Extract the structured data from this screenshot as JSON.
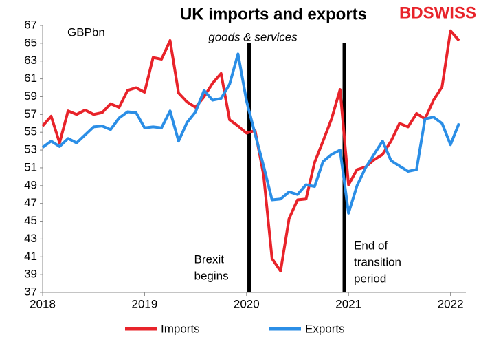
{
  "chart_data": {
    "type": "line",
    "title": "UK imports and exports",
    "subtitle": "goods & services",
    "y_label": "GBPbn",
    "brand": "BDSWISS",
    "categories": [
      "2018",
      null,
      null,
      null,
      null,
      null,
      null,
      null,
      null,
      null,
      null,
      null,
      "2019",
      null,
      null,
      null,
      null,
      null,
      null,
      null,
      null,
      null,
      null,
      null,
      "2020",
      null,
      null,
      null,
      null,
      null,
      null,
      null,
      null,
      null,
      null,
      null,
      "2021",
      null,
      null,
      null,
      null,
      null,
      null,
      null,
      null,
      null,
      null,
      null,
      "2022",
      null
    ],
    "series": [
      {
        "name": "Imports",
        "color": "#e8232a",
        "values": [
          55.7,
          56.8,
          53.8,
          57.4,
          57.0,
          57.5,
          57.0,
          57.2,
          58.2,
          57.8,
          59.7,
          60.0,
          59.5,
          63.4,
          63.2,
          65.3,
          59.4,
          58.4,
          57.8,
          59.0,
          60.5,
          61.6,
          56.4,
          55.7,
          54.9,
          55.2,
          50.2,
          40.8,
          39.4,
          45.3,
          47.4,
          47.5,
          51.6,
          54.0,
          56.5,
          59.8,
          49.1,
          50.8,
          51.1,
          51.9,
          52.5,
          54.0,
          56.0,
          55.6,
          57.1,
          56.5,
          58.6,
          60.1,
          66.4,
          65.3
        ]
      },
      {
        "name": "Exports",
        "color": "#2b8ee6",
        "values": [
          53.3,
          54.0,
          53.4,
          54.3,
          53.8,
          54.7,
          55.6,
          55.7,
          55.3,
          56.6,
          57.3,
          57.2,
          55.5,
          55.6,
          55.5,
          57.4,
          54.0,
          56.1,
          57.3,
          59.7,
          58.6,
          58.8,
          60.4,
          63.8,
          58.5,
          54.8,
          51.2,
          47.4,
          47.5,
          48.3,
          48.0,
          49.1,
          48.9,
          51.7,
          52.5,
          53.0,
          45.9,
          49.0,
          51.0,
          52.5,
          54.0,
          51.8,
          51.2,
          50.6,
          50.8,
          56.5,
          56.7,
          56.0,
          53.6,
          56.0
        ]
      }
    ],
    "vlines": [
      {
        "x": 24.3,
        "label": [
          "Brexit",
          "begins"
        ]
      },
      {
        "x": 35.5,
        "label": [
          "End of",
          "transition",
          "period"
        ]
      }
    ],
    "ylim": [
      37,
      67
    ],
    "yticks": [
      37,
      39,
      41,
      43,
      45,
      47,
      49,
      51,
      53,
      55,
      57,
      59,
      61,
      63,
      65,
      67
    ],
    "grid": false,
    "legend": "bottom"
  }
}
